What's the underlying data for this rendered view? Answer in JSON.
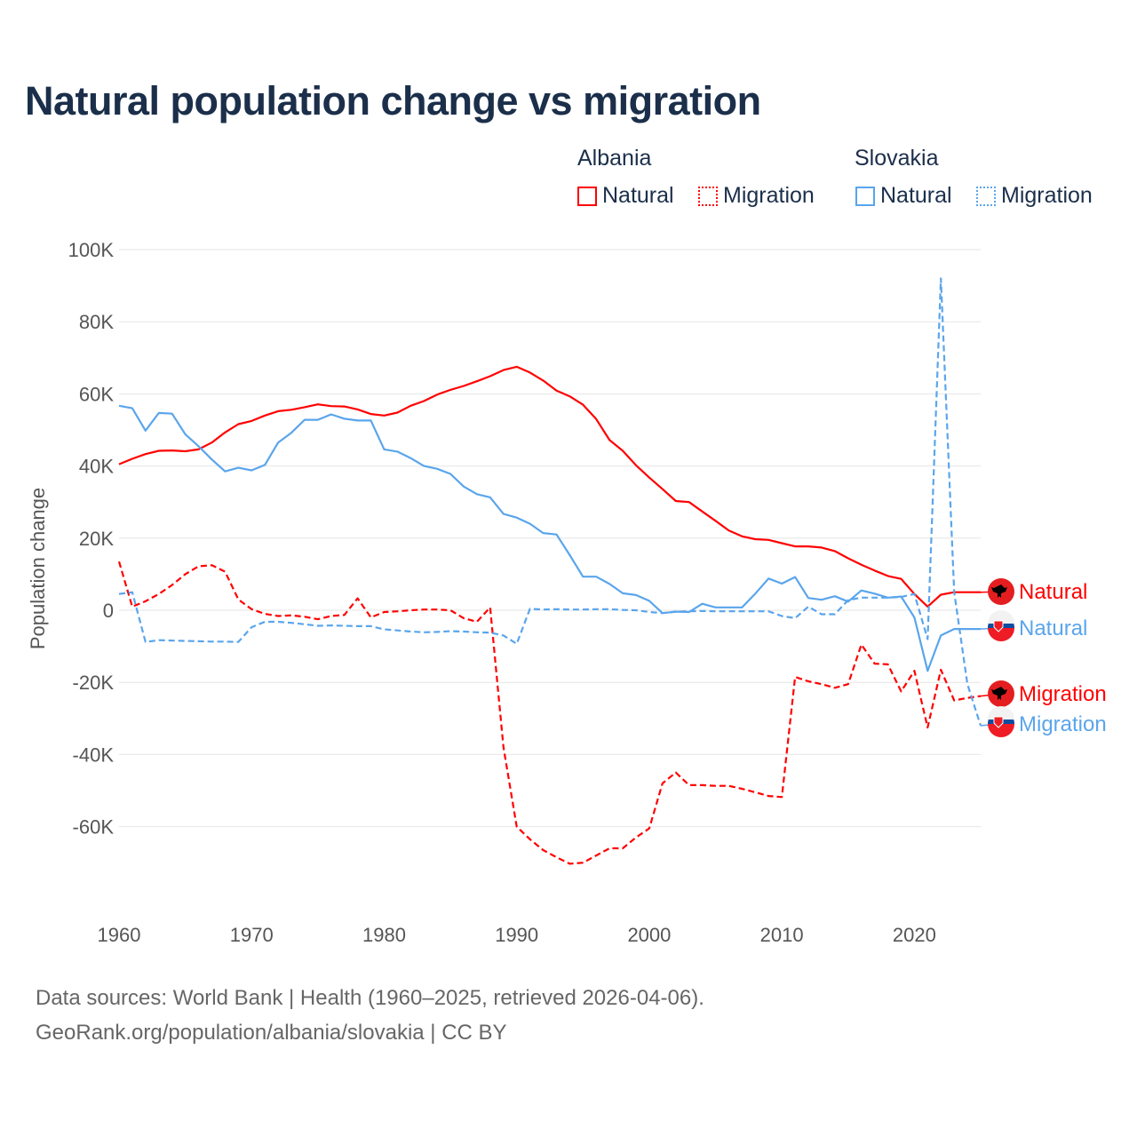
{
  "title": "Natural population change vs migration",
  "legend": {
    "groups": [
      {
        "name": "Albania",
        "color": "#ff0000",
        "items": [
          "Natural",
          "Migration"
        ]
      },
      {
        "name": "Slovakia",
        "color": "#5aa5ec",
        "items": [
          "Natural",
          "Migration"
        ]
      }
    ]
  },
  "footer": {
    "line1": "Data sources: World Bank | Health (1960–2025, retrieved 2026-04-06).",
    "line2": "GeoRank.org/population/albania/slovakia | CC BY"
  },
  "chart_data": {
    "type": "line",
    "title": "Natural population change vs migration",
    "xlabel": "",
    "ylabel": "Population change",
    "xlim": [
      1960,
      2025
    ],
    "ylim": [
      -80000,
      100000
    ],
    "xticks": [
      "1960",
      "1970",
      "1980",
      "1990",
      "2000",
      "2010",
      "2020"
    ],
    "yticks": [
      "100K",
      "80K",
      "60K",
      "40K",
      "20K",
      "0",
      "-20K",
      "-40K",
      "-60K"
    ],
    "grid": true,
    "legend_position": "top-right",
    "x_start": 1960,
    "series": [
      {
        "name": "Albania Natural",
        "label": "Natural",
        "color": "#ff0000",
        "dashed": false,
        "values": [
          40.5,
          42,
          43.3,
          44.2,
          44.3,
          44.1,
          44.6,
          46.5,
          49.3,
          51.6,
          52.5,
          54,
          55.2,
          55.6,
          56.3,
          57.1,
          56.6,
          56.5,
          55.7,
          54.4,
          54,
          54.8,
          56.7,
          58,
          59.8,
          61.1,
          62.2,
          63.5,
          64.9,
          66.6,
          67.5,
          65.9,
          63.7,
          60.9,
          59.3,
          57,
          53,
          47.2,
          44.2,
          40.2,
          36.8,
          33.6,
          30.3,
          30,
          27.4,
          24.8,
          22.1,
          20.5,
          19.7,
          19.5,
          18.6,
          17.7,
          17.7,
          17.4,
          16.4,
          14.4,
          12.6,
          11,
          9.5,
          8.7,
          4.5,
          1,
          4.3,
          5,
          5,
          5
        ]
      },
      {
        "name": "Albania Migration",
        "label": "Migration",
        "color": "#ff0000",
        "dashed": true,
        "values": [
          13.5,
          1,
          2.5,
          4.5,
          7,
          10,
          12.2,
          12.5,
          10.7,
          3,
          0.3,
          -1,
          -1.6,
          -1.4,
          -1.8,
          -2.5,
          -1.6,
          -1.3,
          3.3,
          -2,
          -0.5,
          -0.3,
          0,
          0.2,
          0.2,
          0,
          -2.2,
          -3.2,
          0.8,
          -38,
          -60,
          -63.5,
          -66.5,
          -68.5,
          -70.3,
          -70,
          -68,
          -66,
          -66,
          -63,
          -60.5,
          -48,
          -45,
          -48.5,
          -48.5,
          -48.7,
          -48.7,
          -49.5,
          -50.5,
          -51.5,
          -51.8,
          -18.5,
          -19.7,
          -20.5,
          -21.5,
          -20.5,
          -9.5,
          -14.8,
          -15,
          -22.5,
          -16.8,
          -32.5,
          -16.5,
          -25,
          -24.3,
          -23.8
        ]
      },
      {
        "name": "Slovakia Natural",
        "label": "Natural",
        "color": "#5aa5ec",
        "dashed": false,
        "values": [
          56.7,
          56,
          49.8,
          54.7,
          54.5,
          48.8,
          45.5,
          41.8,
          38.5,
          39.5,
          38.8,
          40.3,
          46.5,
          49.2,
          52.8,
          52.8,
          54.3,
          53.1,
          52.6,
          52.6,
          44.6,
          44,
          42.2,
          40,
          39.2,
          37.8,
          34.3,
          32.2,
          31.3,
          26.7,
          25.7,
          24,
          21.4,
          21,
          15.3,
          9.3,
          9.3,
          7.3,
          4.7,
          4.2,
          2.6,
          -0.8,
          -0.4,
          -0.5,
          1.8,
          0.8,
          0.8,
          0.8,
          4.6,
          8.8,
          7.4,
          9.2,
          3.4,
          2.9,
          3.9,
          2.4,
          5.5,
          4.6,
          3.5,
          3.8,
          -2,
          -16.8,
          -7,
          -5.2,
          -5.2,
          -5.2
        ]
      },
      {
        "name": "Slovakia Migration",
        "label": "Migration",
        "color": "#5aa5ec",
        "dashed": true,
        "values": [
          4.5,
          5,
          -8.8,
          -8.3,
          -8.4,
          -8.5,
          -8.6,
          -8.7,
          -8.7,
          -8.8,
          -4.7,
          -3.2,
          -3.2,
          -3.5,
          -3.9,
          -4.3,
          -4.2,
          -4.3,
          -4.4,
          -4.4,
          -5.3,
          -5.6,
          -5.9,
          -6.1,
          -6,
          -5.8,
          -5.9,
          -6.1,
          -6.2,
          -7,
          -9.3,
          0.4,
          0.2,
          0.3,
          0.2,
          0.2,
          0.3,
          0.3,
          0.1,
          0,
          -0.5,
          -0.8,
          -0.4,
          -0.3,
          -0.2,
          -0.3,
          -0.3,
          -0.3,
          -0.3,
          -0.3,
          -1.6,
          -2.2,
          1,
          -1.1,
          -1.1,
          2.8,
          3.5,
          3.5,
          3.5,
          3.7,
          4.5,
          -8,
          92,
          5,
          -20.5,
          -32
        ]
      }
    ],
    "value_unit": "thousands"
  }
}
